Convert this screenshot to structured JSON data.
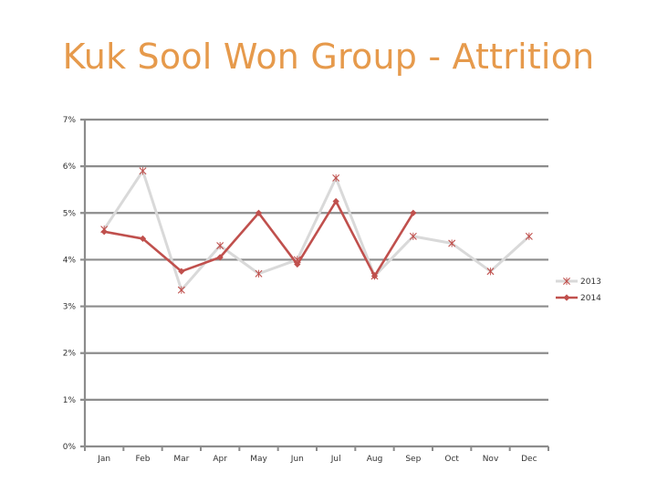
{
  "chart_data": {
    "type": "line",
    "title": "Kuk Sool Won Group - Attrition",
    "categories": [
      "Jan",
      "Feb",
      "Mar",
      "Apr",
      "May",
      "Jun",
      "Jul",
      "Aug",
      "Sep",
      "Oct",
      "Nov",
      "Dec"
    ],
    "y_ticks": [
      "0%",
      "1%",
      "2%",
      "3%",
      "4%",
      "5%",
      "6%",
      "7%"
    ],
    "ylim": [
      0,
      7
    ],
    "grid": true,
    "legend_position": "right",
    "series": [
      {
        "name": "2013",
        "color": "#d9d9d9",
        "marker_color": "#c0504d",
        "marker": "x",
        "values": [
          4.65,
          5.9,
          3.35,
          4.3,
          3.7,
          4.0,
          5.75,
          3.65,
          4.5,
          4.35,
          3.75,
          4.5
        ]
      },
      {
        "name": "2014",
        "color": "#c0504d",
        "marker_color": "#c0504d",
        "marker": "diamond",
        "values": [
          4.6,
          4.45,
          3.75,
          4.05,
          5.0,
          3.9,
          5.25,
          3.65,
          5.0,
          null,
          null,
          null
        ]
      }
    ]
  }
}
